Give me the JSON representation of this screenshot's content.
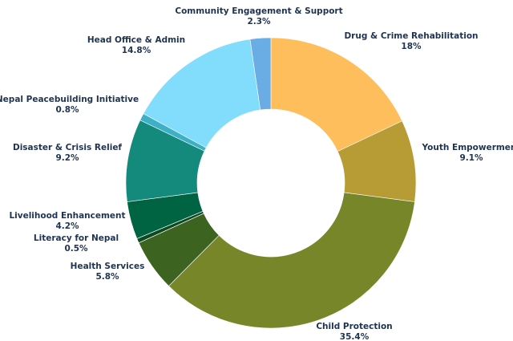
{
  "chart_data": {
    "type": "pie",
    "variant": "donut",
    "title": "",
    "slices": [
      {
        "label": "Drug & Crime Rehabilitation",
        "value": 18,
        "value_label": "18%",
        "color": "#ffbe5c"
      },
      {
        "label": "Youth Empowerment",
        "value": 9.1,
        "value_label": "9.1%",
        "color": "#b79c35"
      },
      {
        "label": "Child Protection",
        "value": 35.4,
        "value_label": "35.4%",
        "color": "#778629"
      },
      {
        "label": "Health Services",
        "value": 5.8,
        "value_label": "5.8%",
        "color": "#3d6320"
      },
      {
        "label": "Literacy for Nepal",
        "value": 0.5,
        "value_label": "0.5%",
        "color": "#0e4a21"
      },
      {
        "label": "Livelihood Enhancement",
        "value": 4.2,
        "value_label": "4.2%",
        "color": "#006443"
      },
      {
        "label": "Disaster & Crisis Relief",
        "value": 9.2,
        "value_label": "9.2%",
        "color": "#148a7d"
      },
      {
        "label": "Nepal Peacebuilding Initiative",
        "value": 0.8,
        "value_label": "0.8%",
        "color": "#3dafc6"
      },
      {
        "label": "Head Office & Admin",
        "value": 14.8,
        "value_label": "14.8%",
        "color": "#82dcfb"
      },
      {
        "label": "Community Engagement & Support",
        "value": 2.3,
        "value_label": "2.3%",
        "color": "#6aace4"
      }
    ],
    "start_angle_deg": 0,
    "direction": "clockwise",
    "legend": "none"
  }
}
